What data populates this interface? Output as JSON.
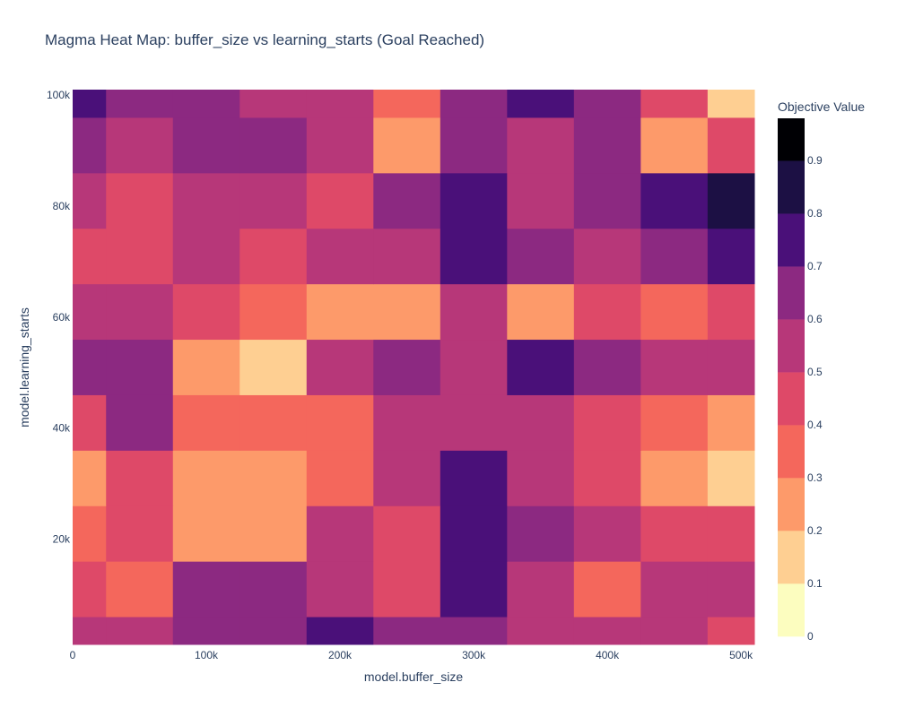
{
  "chart_data": {
    "type": "heatmap",
    "title": "Magma Heat Map: buffer_size vs learning_starts (Goal Reached)",
    "xlabel": "model.buffer_size",
    "ylabel": "model.learning_starts",
    "xlim": [
      0,
      510000
    ],
    "ylim": [
      1000,
      101000
    ],
    "x_ticks": [
      {
        "value": 0,
        "label": "0"
      },
      {
        "value": 100000,
        "label": "100k"
      },
      {
        "value": 200000,
        "label": "200k"
      },
      {
        "value": 300000,
        "label": "300k"
      },
      {
        "value": 400000,
        "label": "400k"
      },
      {
        "value": 500000,
        "label": "500k"
      }
    ],
    "y_ticks": [
      {
        "value": 20000,
        "label": "20k"
      },
      {
        "value": 40000,
        "label": "40k"
      },
      {
        "value": 60000,
        "label": "60k"
      },
      {
        "value": 80000,
        "label": "80k"
      },
      {
        "value": 100000,
        "label": "100k"
      }
    ],
    "colorscale": "Magma (reversed)",
    "colorbar": {
      "title": "Objective Value",
      "range": [
        0,
        0.98
      ],
      "ticks": [
        {
          "value": 0,
          "label": "0"
        },
        {
          "value": 0.1,
          "label": "0.1"
        },
        {
          "value": 0.2,
          "label": "0.2"
        },
        {
          "value": 0.3,
          "label": "0.3"
        },
        {
          "value": 0.4,
          "label": "0.4"
        },
        {
          "value": 0.5,
          "label": "0.5"
        },
        {
          "value": 0.6,
          "label": "0.6"
        },
        {
          "value": 0.7,
          "label": "0.7"
        },
        {
          "value": 0.8,
          "label": "0.8"
        },
        {
          "value": 0.9,
          "label": "0.9"
        }
      ],
      "bands": [
        {
          "from": 0.0,
          "to": 0.1,
          "color": "#fcfdbf"
        },
        {
          "from": 0.1,
          "to": 0.2,
          "color": "#fecf92"
        },
        {
          "from": 0.2,
          "to": 0.3,
          "color": "#fd9a6a"
        },
        {
          "from": 0.3,
          "to": 0.4,
          "color": "#f4675c"
        },
        {
          "from": 0.4,
          "to": 0.5,
          "color": "#de4968"
        },
        {
          "from": 0.5,
          "to": 0.6,
          "color": "#b73779"
        },
        {
          "from": 0.6,
          "to": 0.7,
          "color": "#8c2981"
        },
        {
          "from": 0.7,
          "to": 0.8,
          "color": "#4a1079"
        },
        {
          "from": 0.8,
          "to": 0.9,
          "color": "#1c1044"
        },
        {
          "from": 0.9,
          "to": 0.98,
          "color": "#000004"
        }
      ]
    },
    "x": [
      0,
      50000,
      100000,
      150000,
      200000,
      250000,
      300000,
      350000,
      400000,
      450000,
      500000
    ],
    "y": [
      1000,
      11000,
      21000,
      31000,
      41000,
      51000,
      61000,
      71000,
      81000,
      91000,
      101000
    ],
    "z": [
      [
        0.55,
        0.58,
        0.62,
        0.68,
        0.78,
        0.6,
        0.62,
        0.58,
        0.56,
        0.52,
        0.48
      ],
      [
        0.42,
        0.35,
        0.6,
        0.62,
        0.58,
        0.45,
        0.7,
        0.58,
        0.38,
        0.58,
        0.55
      ],
      [
        0.38,
        0.4,
        0.22,
        0.25,
        0.52,
        0.48,
        0.75,
        0.62,
        0.5,
        0.45,
        0.48
      ],
      [
        0.28,
        0.4,
        0.28,
        0.22,
        0.35,
        0.5,
        0.7,
        0.52,
        0.4,
        0.22,
        0.15
      ],
      [
        0.48,
        0.6,
        0.38,
        0.3,
        0.35,
        0.5,
        0.52,
        0.55,
        0.45,
        0.3,
        0.25
      ],
      [
        0.6,
        0.62,
        0.28,
        0.18,
        0.58,
        0.6,
        0.55,
        0.72,
        0.65,
        0.58,
        0.5
      ],
      [
        0.55,
        0.58,
        0.42,
        0.35,
        0.25,
        0.28,
        0.52,
        0.28,
        0.4,
        0.3,
        0.42
      ],
      [
        0.48,
        0.4,
        0.55,
        0.48,
        0.52,
        0.55,
        0.72,
        0.62,
        0.58,
        0.68,
        0.78
      ],
      [
        0.52,
        0.48,
        0.58,
        0.52,
        0.42,
        0.6,
        0.7,
        0.55,
        0.62,
        0.72,
        0.82
      ],
      [
        0.68,
        0.58,
        0.62,
        0.6,
        0.55,
        0.28,
        0.62,
        0.58,
        0.6,
        0.28,
        0.4
      ],
      [
        0.72,
        0.65,
        0.68,
        0.58,
        0.55,
        0.38,
        0.6,
        0.72,
        0.65,
        0.42,
        0.12
      ]
    ]
  }
}
